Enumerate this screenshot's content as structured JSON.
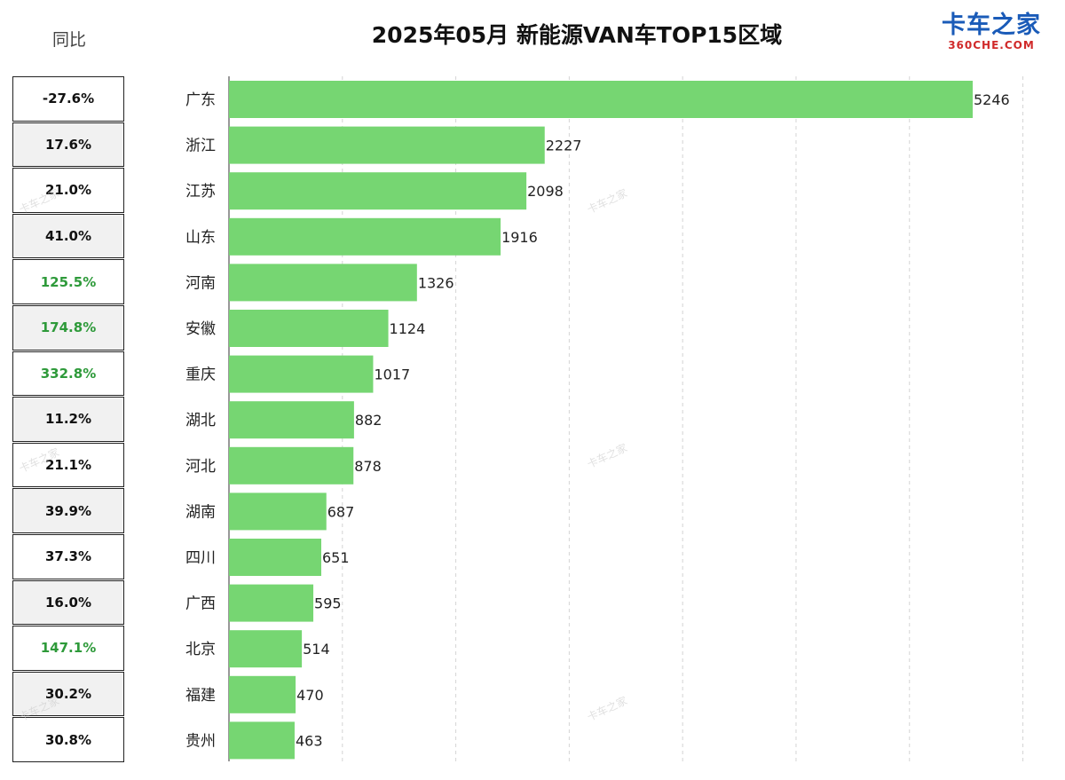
{
  "yoy": {
    "header": "同比",
    "values": [
      "-27.6%",
      "17.6%",
      "21.0%",
      "41.0%",
      "125.5%",
      "174.8%",
      "332.8%",
      "11.2%",
      "21.1%",
      "39.9%",
      "37.3%",
      "16.0%",
      "147.1%",
      "30.2%",
      "30.8%"
    ],
    "highlight_color": "#2e9a3a"
  },
  "logo": {
    "main": "卡车之家",
    "sub": "360CHE.COM"
  },
  "watermark": "卡车之家",
  "chart_data": {
    "type": "bar",
    "orientation": "horizontal",
    "title": "2025年05月 新能源VAN车TOP15区域",
    "categories": [
      "广东",
      "浙江",
      "江苏",
      "山东",
      "河南",
      "安徽",
      "重庆",
      "湖北",
      "河北",
      "湖南",
      "四川",
      "广西",
      "北京",
      "福建",
      "贵州"
    ],
    "values": [
      5246,
      2227,
      2098,
      1916,
      1326,
      1124,
      1017,
      882,
      878,
      687,
      651,
      595,
      514,
      470,
      463
    ],
    "data_labels": [
      "5246",
      "2227",
      "2098",
      "1916",
      "1326",
      "1124",
      "1017",
      "882",
      "878",
      "687",
      "651",
      "595",
      "514",
      "470",
      "463"
    ],
    "xlim": [
      0,
      5600
    ],
    "grid": true,
    "bar_color": "#76d672",
    "xlabel": "",
    "ylabel": ""
  }
}
